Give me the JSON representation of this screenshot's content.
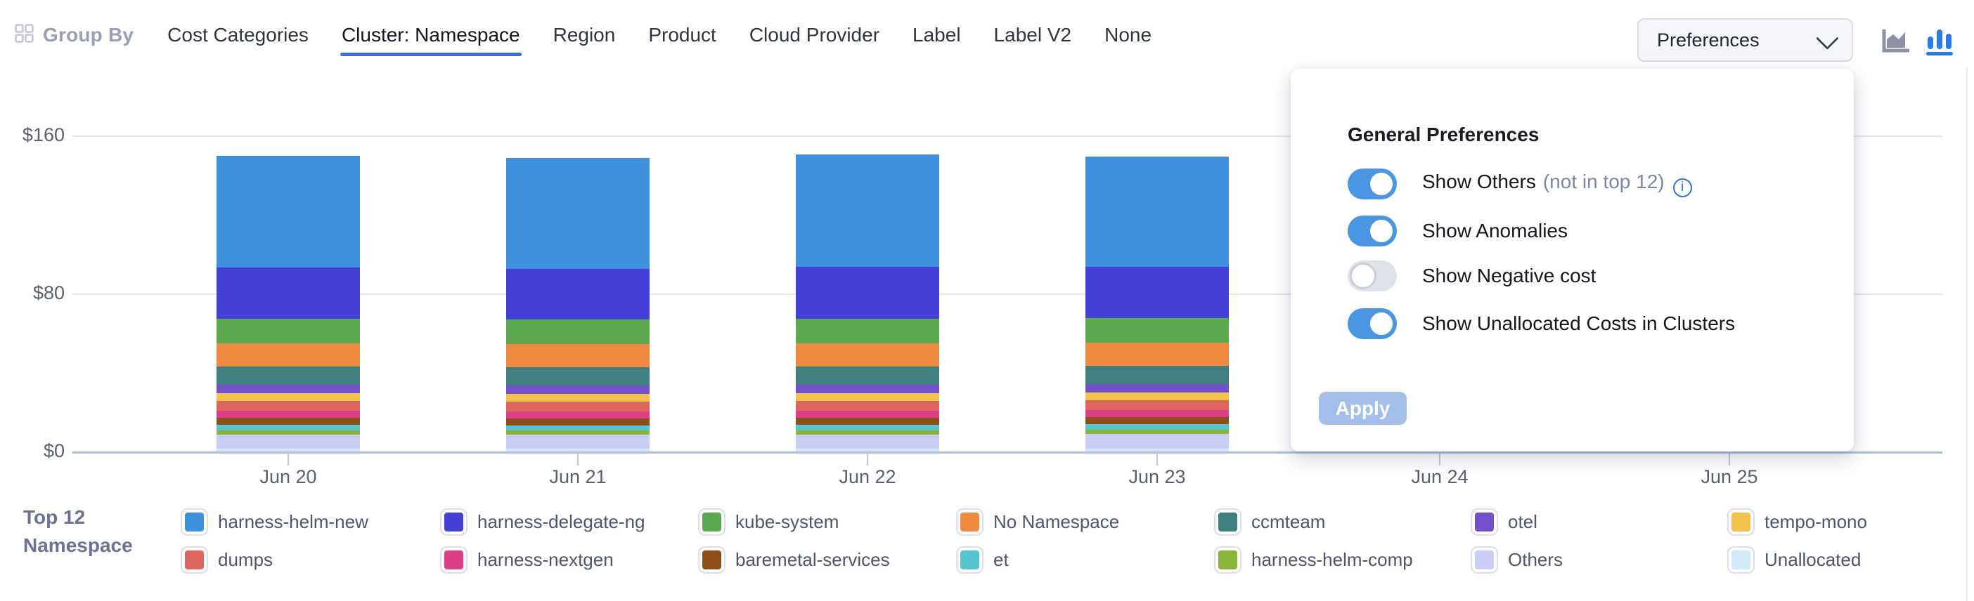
{
  "toolbar": {
    "group_by_label": "Group By",
    "tabs": [
      {
        "label": "Cost Categories",
        "active": false
      },
      {
        "label": "Cluster: Namespace",
        "active": true
      },
      {
        "label": "Region",
        "active": false
      },
      {
        "label": "Product",
        "active": false
      },
      {
        "label": "Cloud Provider",
        "active": false
      },
      {
        "label": "Label",
        "active": false
      },
      {
        "label": "Label V2",
        "active": false
      },
      {
        "label": "None",
        "active": false
      }
    ],
    "preferences_label": "Preferences",
    "chart_type_icons": [
      {
        "name": "area-chart-icon",
        "active": false,
        "color": "#8e90a6"
      },
      {
        "name": "bar-chart-icon",
        "active": true,
        "color": "#2979e8"
      }
    ]
  },
  "preferences_panel": {
    "title": "General Preferences",
    "toggles": [
      {
        "label": "Show Others",
        "suffix": "(not in top 12)",
        "info_icon": true,
        "on": true
      },
      {
        "label": "Show Anomalies",
        "suffix": "",
        "info_icon": false,
        "on": true
      },
      {
        "label": "Show Negative cost",
        "suffix": "",
        "info_icon": false,
        "on": false
      },
      {
        "label": "Show Unallocated Costs in Clusters",
        "suffix": "",
        "info_icon": false,
        "on": true
      }
    ],
    "apply_label": "Apply",
    "accent_color": "#4a96e3",
    "apply_disabled_color": "#a3bfe9"
  },
  "legend": {
    "title_line1": "Top 12",
    "title_line2": "Namespace"
  },
  "chart_data": {
    "type": "bar",
    "stacked": true,
    "categories": [
      "Jun 20",
      "Jun 21",
      "Jun 22",
      "Jun 23",
      "Jun 24",
      "Jun 25"
    ],
    "occluded_categories": [
      "Jun 24",
      "Jun 25"
    ],
    "ylim": [
      0,
      160
    ],
    "ytick_labels": [
      "$0",
      "$80",
      "$160"
    ],
    "yticks": [
      0,
      80,
      160
    ],
    "grid": "horizontal",
    "legend_position": "bottom",
    "series": [
      {
        "name": "harness-helm-new",
        "color": "#3F90DD",
        "values": [
          56.5,
          56.0,
          57.0,
          55.8,
          null,
          null
        ]
      },
      {
        "name": "harness-delegate-ng",
        "color": "#443FD6",
        "values": [
          26.0,
          25.8,
          26.2,
          26.0,
          null,
          null
        ]
      },
      {
        "name": "kube-system",
        "color": "#5BA84F",
        "values": [
          12.4,
          12.4,
          12.5,
          12.4,
          null,
          null
        ]
      },
      {
        "name": "No Namespace",
        "color": "#EE8A42",
        "values": [
          11.7,
          11.6,
          11.8,
          11.7,
          null,
          null
        ]
      },
      {
        "name": "ccmteam",
        "color": "#407F7F",
        "values": [
          9.2,
          9.3,
          9.2,
          9.2,
          null,
          null
        ]
      },
      {
        "name": "otel",
        "color": "#7450C8",
        "values": [
          4.3,
          4.2,
          4.3,
          4.3,
          null,
          null
        ]
      },
      {
        "name": "tempo-mono",
        "color": "#F2C24C",
        "values": [
          3.9,
          3.9,
          3.9,
          3.9,
          null,
          null
        ]
      },
      {
        "name": "dumps",
        "color": "#DD675E",
        "values": [
          5.0,
          4.9,
          5.0,
          5.0,
          null,
          null
        ]
      },
      {
        "name": "harness-nextgen",
        "color": "#DD3F87",
        "values": [
          3.6,
          3.6,
          3.6,
          3.6,
          null,
          null
        ]
      },
      {
        "name": "baremetal-services",
        "color": "#8C4F1A",
        "values": [
          3.6,
          3.5,
          3.6,
          3.6,
          null,
          null
        ]
      },
      {
        "name": "et",
        "color": "#56C5D0",
        "values": [
          2.8,
          2.8,
          2.8,
          2.8,
          null,
          null
        ]
      },
      {
        "name": "harness-helm-comp",
        "color": "#8AB53A",
        "values": [
          2.1,
          2.1,
          2.1,
          2.1,
          null,
          null
        ]
      },
      {
        "name": "Others",
        "color": "#CCCDF7",
        "values": [
          7.1,
          7.0,
          7.1,
          7.5,
          null,
          null
        ]
      },
      {
        "name": "Unallocated",
        "color": "#CFE9F7",
        "values": [
          1.4,
          1.4,
          1.4,
          1.4,
          null,
          null
        ]
      }
    ]
  }
}
